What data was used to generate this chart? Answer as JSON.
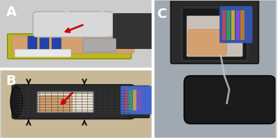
{
  "panels": [
    "A",
    "B",
    "C"
  ],
  "label_color": "white",
  "label_fontsize": 14,
  "label_fontweight": "bold",
  "figure_bg": "#cccccc",
  "fig_width": 4.0,
  "fig_height": 2.0,
  "dpi": 100,
  "arrow_color_red": "#cc0000",
  "arrow_color_black": "#111111",
  "bg_A": "#4a5a6a",
  "bg_B": "#c8b898",
  "bg_C": "#a0a8b0"
}
